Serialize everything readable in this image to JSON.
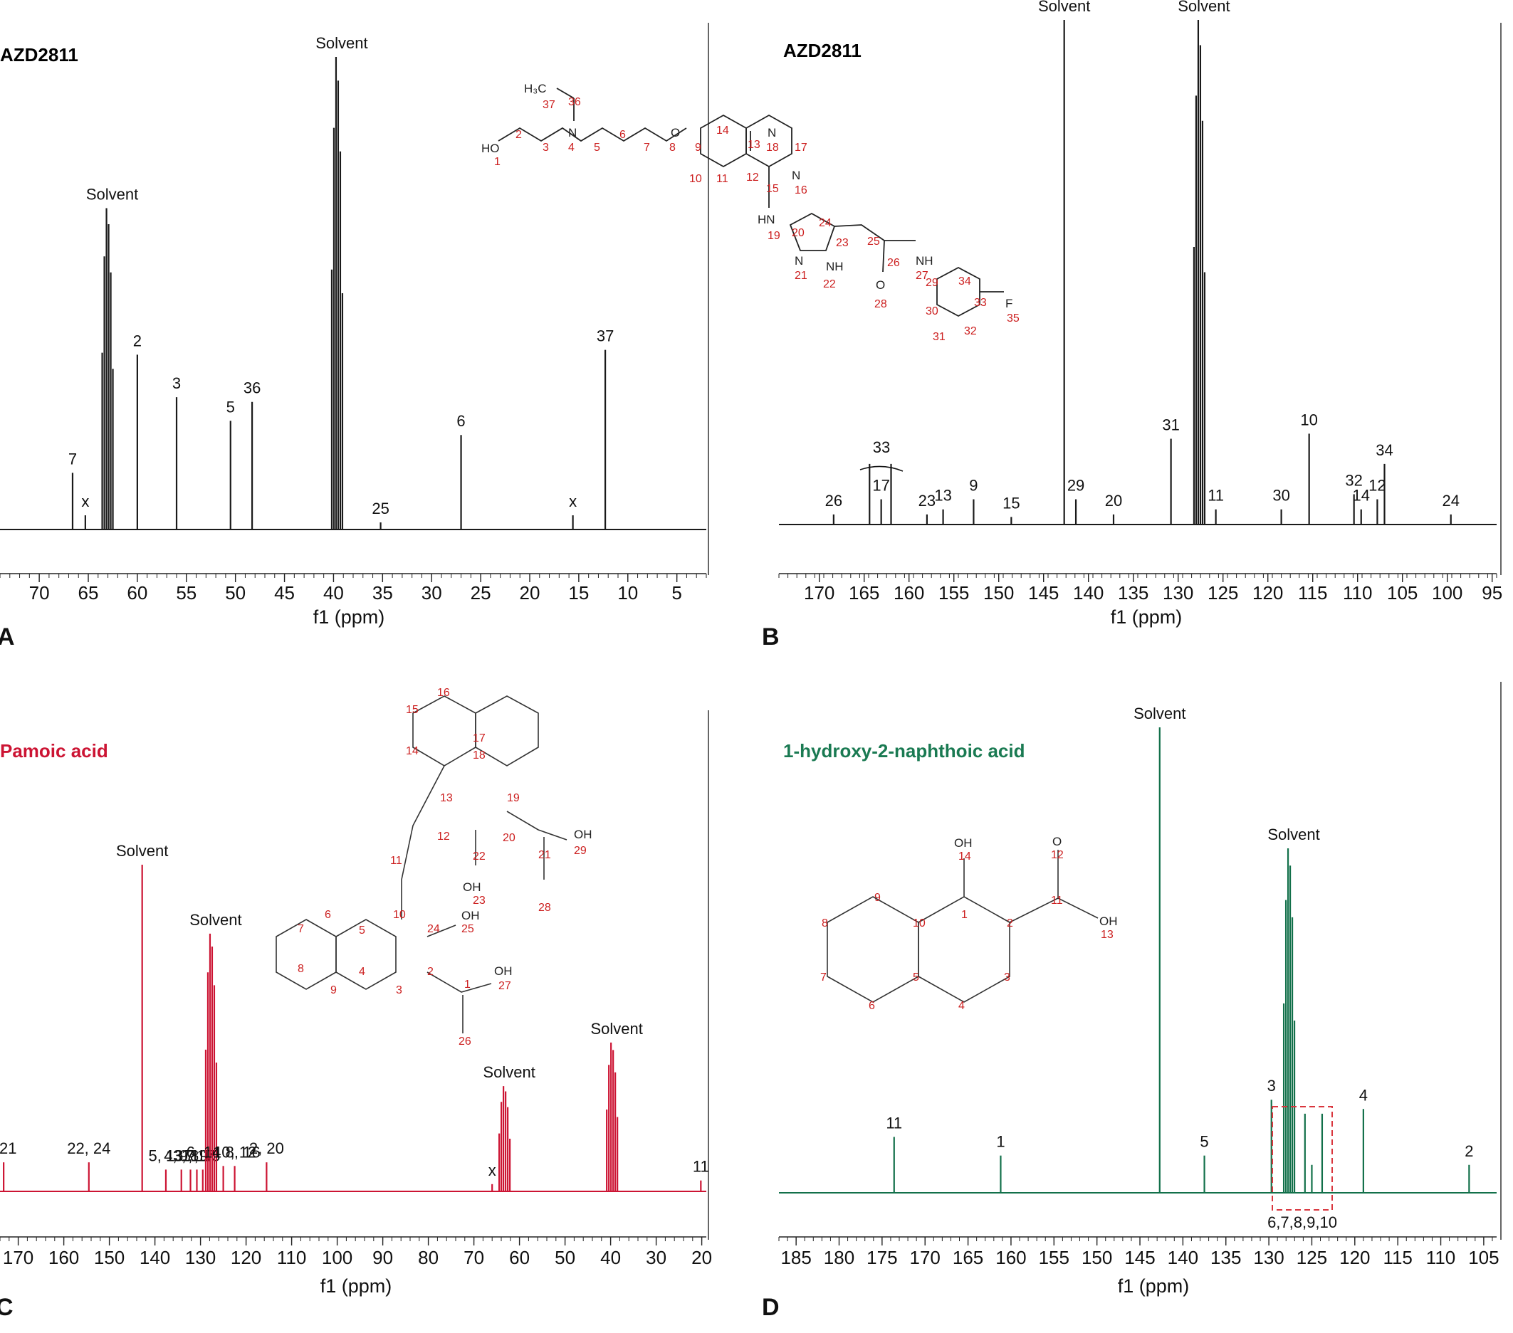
{
  "chart_data": [
    {
      "panel": "A",
      "type": "line",
      "title": "AZD2811",
      "title_color": "#111111",
      "color": "#1a1a1a",
      "xlabel": "f1 (ppm)",
      "xlim": [
        74,
        2
      ],
      "reversed": true,
      "ticks": [
        70,
        65,
        60,
        55,
        50,
        45,
        40,
        35,
        30,
        25,
        20,
        15,
        10,
        5
      ],
      "peaks": [
        {
          "x": 66.6,
          "h": 0.12,
          "label": "7"
        },
        {
          "x": 65.3,
          "h": 0.03,
          "label": "x"
        },
        {
          "x": 63.0,
          "h": 0.68,
          "label": "Solvent",
          "multiplet": true
        },
        {
          "x": 60.0,
          "h": 0.37,
          "label": "2"
        },
        {
          "x": 56.0,
          "h": 0.28,
          "label": "3"
        },
        {
          "x": 50.5,
          "h": 0.23,
          "label": "5"
        },
        {
          "x": 48.3,
          "h": 0.27,
          "label": "36"
        },
        {
          "x": 39.6,
          "h": 1.0,
          "label": "Solvent",
          "multiplet": true
        },
        {
          "x": 35.2,
          "h": 0.015,
          "label": "25"
        },
        {
          "x": 27.0,
          "h": 0.2,
          "label": "6"
        },
        {
          "x": 15.6,
          "h": 0.03,
          "label": "x"
        },
        {
          "x": 12.3,
          "h": 0.38,
          "label": "37"
        }
      ]
    },
    {
      "panel": "B",
      "type": "line",
      "title": "AZD2811",
      "title_color": "#111111",
      "color": "#1a1a1a",
      "xlabel": "f1 (ppm)",
      "xlim": [
        174.5,
        94.5
      ],
      "reversed": true,
      "ticks": [
        170,
        165,
        160,
        155,
        150,
        145,
        140,
        135,
        130,
        125,
        120,
        115,
        110,
        105,
        100,
        95
      ],
      "peaks": [
        {
          "x": 168.4,
          "h": 0.02,
          "label": "26"
        },
        {
          "x": 164.4,
          "h": 0.12,
          "label": ""
        },
        {
          "x": 163.1,
          "h": 0.05,
          "label": "17"
        },
        {
          "x": 162.0,
          "h": 0.12,
          "label": ""
        },
        {
          "x": 158.0,
          "h": 0.02,
          "label": "23"
        },
        {
          "x": 156.2,
          "h": 0.03,
          "label": "13"
        },
        {
          "x": 152.8,
          "h": 0.05,
          "label": "9"
        },
        {
          "x": 148.6,
          "h": 0.015,
          "label": "15"
        },
        {
          "x": 142.7,
          "h": 1.0,
          "label": "Solvent"
        },
        {
          "x": 141.4,
          "h": 0.05,
          "label": "29"
        },
        {
          "x": 137.2,
          "h": 0.02,
          "label": "20"
        },
        {
          "x": 130.8,
          "h": 0.17,
          "label": "31"
        },
        {
          "x": 127.6,
          "h": 1.0,
          "label": "Solvent",
          "multiplet": true
        },
        {
          "x": 125.8,
          "h": 0.03,
          "label": "11"
        },
        {
          "x": 118.5,
          "h": 0.03,
          "label": "30"
        },
        {
          "x": 115.4,
          "h": 0.18,
          "label": "10"
        },
        {
          "x": 110.4,
          "h": 0.06,
          "label": "32"
        },
        {
          "x": 109.6,
          "h": 0.03,
          "label": "14"
        },
        {
          "x": 107.8,
          "h": 0.05,
          "label": "12"
        },
        {
          "x": 107.0,
          "h": 0.12,
          "label": "34"
        },
        {
          "x": 99.6,
          "h": 0.02,
          "label": "24"
        }
      ]
    },
    {
      "panel": "C",
      "type": "line",
      "title": "Pamoic acid",
      "title_color": "#cc1433",
      "color": "#cc1433",
      "xlabel": "f1 (ppm)",
      "xlim": [
        174,
        19
      ],
      "reversed": true,
      "ticks": [
        170,
        160,
        150,
        140,
        130,
        120,
        110,
        100,
        90,
        80,
        70,
        60,
        50,
        40,
        30,
        20
      ],
      "peaks": [
        {
          "x": 173.2,
          "h": 0.08,
          "label": ", 21"
        },
        {
          "x": 154.5,
          "h": 0.08,
          "label": "22, 24"
        },
        {
          "x": 142.8,
          "h": 0.9,
          "label": "Solvent"
        },
        {
          "x": 137.6,
          "h": 0.06,
          "label": "5, 13"
        },
        {
          "x": 134.2,
          "h": 0.06,
          "label": "4, 18"
        },
        {
          "x": 132.2,
          "h": 0.06,
          "label": "3, 19"
        },
        {
          "x": 130.8,
          "h": 0.06,
          "label": "9, 17"
        },
        {
          "x": 129.5,
          "h": 0.06,
          "label": "7, 15"
        },
        {
          "x": 127.6,
          "h": 0.71,
          "label": "Solvent",
          "multiplet": true
        },
        {
          "x": 125.0,
          "h": 0.07,
          "label": "6, 14 8, 16"
        },
        {
          "x": 122.5,
          "h": 0.07,
          "label": "10, 12"
        },
        {
          "x": 115.5,
          "h": 0.08,
          "label": "2, 20"
        },
        {
          "x": 66.0,
          "h": 0.02,
          "label": "x"
        },
        {
          "x": 63.2,
          "h": 0.29,
          "label": "Solvent",
          "multiplet": true
        },
        {
          "x": 39.6,
          "h": 0.41,
          "label": "Solvent",
          "multiplet": true
        },
        {
          "x": 20.2,
          "h": 0.03,
          "label": "11"
        }
      ]
    },
    {
      "panel": "D",
      "type": "line",
      "title": "1-hydroxy-2-naphthoic acid",
      "title_color": "#1a7a52",
      "color": "#12704a",
      "xlabel": "f1 (ppm)",
      "xlim": [
        187,
        103.5
      ],
      "reversed": true,
      "ticks": [
        185,
        180,
        175,
        170,
        165,
        160,
        155,
        150,
        145,
        140,
        135,
        130,
        125,
        120,
        115,
        110,
        105
      ],
      "peaks": [
        {
          "x": 173.6,
          "h": 0.12,
          "label": "11"
        },
        {
          "x": 161.2,
          "h": 0.08,
          "label": "1"
        },
        {
          "x": 142.7,
          "h": 1.0,
          "label": "Solvent"
        },
        {
          "x": 137.5,
          "h": 0.08,
          "label": "5"
        },
        {
          "x": 129.7,
          "h": 0.2,
          "label": "3"
        },
        {
          "x": 127.6,
          "h": 0.74,
          "label": "Solvent",
          "multiplet": true
        },
        {
          "x": 125.8,
          "h": 0.17,
          "label": ""
        },
        {
          "x": 125.0,
          "h": 0.06,
          "label": ""
        },
        {
          "x": 123.8,
          "h": 0.17,
          "label": ""
        },
        {
          "x": 119.0,
          "h": 0.18,
          "label": "4"
        },
        {
          "x": 106.7,
          "h": 0.06,
          "label": "2"
        }
      ],
      "box_label": "6,7,8,9,10"
    }
  ],
  "panel_letters": [
    "A",
    "B",
    "C",
    "D"
  ]
}
